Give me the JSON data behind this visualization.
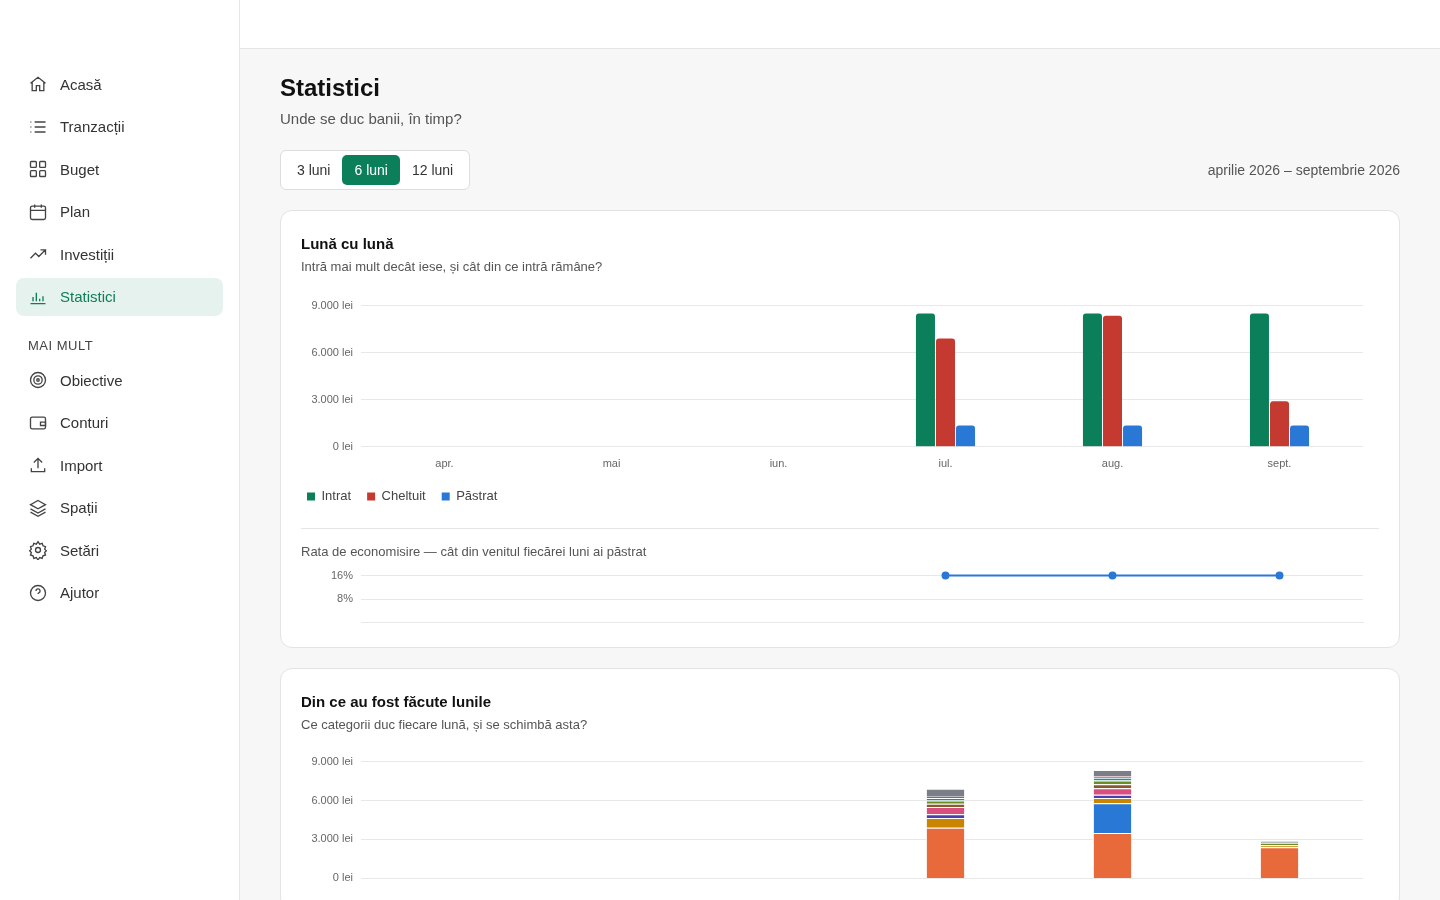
{
  "chart_data": [
    {
      "type": "other",
      "title": "Statistici",
      "subtitle": "Unde se duc banii, în timp?",
      "annotations": [
        "Acasă",
        "Tranzacții",
        "Buget",
        "Plan",
        "Investiții",
        "Statistici",
        "MAI MULT",
        "Obiective",
        "Conturi",
        "Import",
        "Spații",
        "Setări",
        "Ajutor",
        "3 luni",
        "6 luni",
        "12 luni",
        "aprilie 2026 – septembrie 2026"
      ]
    },
    {
      "type": "bar",
      "title": "Lună cu lună",
      "subtitle": "Intră mai mult decât iese, și cât din ce intră rămâne?",
      "categories": [
        "apr.",
        "mai",
        "iun.",
        "iul.",
        "aug.",
        "sept."
      ],
      "series": [
        {
          "name": "Intrat",
          "color": "#0b7f5a",
          "values": [
            null,
            null,
            null,
            8500,
            8500,
            8500
          ]
        },
        {
          "name": "Cheltuit",
          "color": "#c43a31",
          "values": [
            null,
            null,
            null,
            6900,
            8350,
            2900
          ]
        },
        {
          "name": "Păstrat",
          "color": "#2a78d6",
          "values": [
            null,
            null,
            null,
            1350,
            1350,
            1350
          ]
        }
      ],
      "ylim": [
        0,
        9000
      ],
      "yticks": [
        {
          "value": 0,
          "label": "0 lei"
        },
        {
          "value": 3000,
          "label": "3.000 lei"
        },
        {
          "value": 6000,
          "label": "6.000 lei"
        },
        {
          "value": 9000,
          "label": "9.000 lei"
        }
      ],
      "grid": "y",
      "legend": "bottom left"
    },
    {
      "type": "line",
      "title": "Rata de economisire — cât din venitul fiecărei luni ai păstrat",
      "categories": [
        null,
        null,
        null,
        null,
        null,
        null
      ],
      "series": [
        {
          "color": "#2a78d6",
          "values": [
            null,
            null,
            null,
            16,
            16,
            16
          ]
        }
      ],
      "ylim": [
        0,
        16
      ],
      "yticks": [
        {
          "value": 8,
          "label": "8%"
        },
        {
          "value": 16,
          "label": "16%"
        }
      ],
      "grid": "y",
      "marker": "circle",
      "line_style": "solid",
      "tick_labels": "y"
    },
    {
      "type": "bar",
      "title": "Din ce au fost făcute lunile",
      "subtitle": "Ce categorii duc fiecare lună, și se schimbă asta?",
      "categories": [
        null,
        null,
        null,
        null,
        null,
        null
      ],
      "stacked": true,
      "series": [
        {
          "color": "#e8693a",
          "values": [
            null,
            null,
            null,
            3900,
            3500,
            2400
          ]
        },
        {
          "color": "#2a78d6",
          "values": [
            null,
            null,
            null,
            0,
            2300,
            0
          ]
        },
        {
          "color": "#c98500",
          "values": [
            null,
            null,
            null,
            750,
            400,
            150
          ]
        },
        {
          "color": "#4b3fae",
          "values": [
            null,
            null,
            null,
            300,
            250,
            0
          ]
        },
        {
          "color": "#d64f7f",
          "values": [
            null,
            null,
            null,
            550,
            500,
            0
          ]
        },
        {
          "color": "#8a5a2e",
          "values": [
            null,
            null,
            null,
            250,
            300,
            0
          ]
        },
        {
          "color": "#6b8e23",
          "values": [
            null,
            null,
            null,
            250,
            300,
            200
          ]
        },
        {
          "color": "#1a8fa0",
          "values": [
            null,
            null,
            null,
            200,
            200,
            0
          ]
        },
        {
          "color": "#8b1e3f",
          "values": [
            null,
            null,
            null,
            100,
            150,
            0
          ]
        },
        {
          "color": "#7a7f87",
          "values": [
            null,
            null,
            null,
            600,
            450,
            150
          ]
        }
      ],
      "ylim": [
        0,
        9000
      ],
      "yticks": [
        {
          "value": 0,
          "label": "0 lei"
        },
        {
          "value": 3000,
          "label": "3.000 lei"
        },
        {
          "value": 6000,
          "label": "6.000 lei"
        },
        {
          "value": 9000,
          "label": "9.000 lei"
        }
      ],
      "grid": "y",
      "tick_labels": "y"
    }
  ]
}
